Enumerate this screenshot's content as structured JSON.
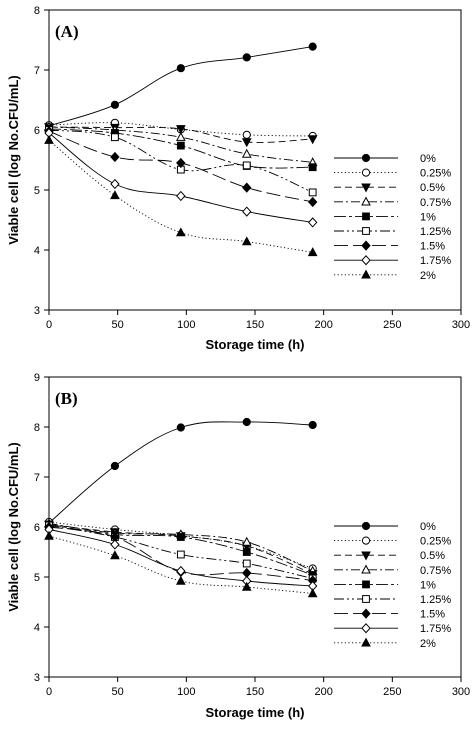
{
  "chart_data": [
    {
      "type": "line",
      "panel_label": "(A)",
      "xlabel": "Storage time (h)",
      "ylabel": "Viable cell (log No.CFU/mL)",
      "xlim": [
        0,
        300
      ],
      "ylim": [
        3,
        8
      ],
      "xticks": [
        0,
        50,
        100,
        150,
        200,
        250,
        300
      ],
      "yticks": [
        3,
        4,
        5,
        6,
        7,
        8
      ],
      "grid": false,
      "legend_position": "right",
      "x": [
        0,
        48,
        96,
        144,
        192
      ],
      "series": [
        {
          "name": "0%",
          "marker": "circle",
          "fill": "filled",
          "dash": "solid",
          "values": [
            6.07,
            6.42,
            7.03,
            7.21,
            7.39
          ]
        },
        {
          "name": "0.25%",
          "marker": "circle",
          "fill": "open",
          "dash": "dotted",
          "values": [
            6.08,
            6.12,
            6.01,
            5.92,
            5.9
          ]
        },
        {
          "name": "0.5%",
          "marker": "triangle-down",
          "fill": "filled",
          "dash": "short-dash",
          "values": [
            6.05,
            6.04,
            6.02,
            5.8,
            5.85
          ]
        },
        {
          "name": "0.75%",
          "marker": "triangle-up",
          "fill": "open",
          "dash": "dash-dot",
          "values": [
            6.05,
            6.0,
            5.88,
            5.6,
            5.46
          ]
        },
        {
          "name": "1%",
          "marker": "square",
          "fill": "filled",
          "dash": "long-dash-dot",
          "values": [
            6.02,
            5.95,
            5.74,
            5.4,
            5.38
          ]
        },
        {
          "name": "1.25%",
          "marker": "square",
          "fill": "open",
          "dash": "dash-dot-dot",
          "values": [
            6.0,
            5.88,
            5.34,
            5.41,
            4.96
          ]
        },
        {
          "name": "1.5%",
          "marker": "diamond",
          "fill": "filled",
          "dash": "long-dash",
          "values": [
            5.98,
            5.55,
            5.45,
            5.04,
            4.8
          ]
        },
        {
          "name": "1.75%",
          "marker": "diamond",
          "fill": "open",
          "dash": "solid",
          "values": [
            5.95,
            5.1,
            4.9,
            4.64,
            4.46
          ]
        },
        {
          "name": "2%",
          "marker": "triangle-up",
          "fill": "filled",
          "dash": "dotted",
          "values": [
            5.83,
            4.91,
            4.29,
            4.14,
            3.96
          ]
        }
      ]
    },
    {
      "type": "line",
      "panel_label": "(B)",
      "xlabel": "Storage time (h)",
      "ylabel": "Viable cell (log No.CFU/mL)",
      "xlim": [
        0,
        300
      ],
      "ylim": [
        3,
        9
      ],
      "xticks": [
        0,
        50,
        100,
        150,
        200,
        250,
        300
      ],
      "yticks": [
        3,
        4,
        5,
        6,
        7,
        8,
        9
      ],
      "grid": false,
      "legend_position": "right",
      "x": [
        0,
        48,
        96,
        144,
        192
      ],
      "series": [
        {
          "name": "0%",
          "marker": "circle",
          "fill": "filled",
          "dash": "solid",
          "values": [
            6.08,
            7.22,
            7.99,
            8.1,
            8.04
          ]
        },
        {
          "name": "0.25%",
          "marker": "circle",
          "fill": "open",
          "dash": "dotted",
          "values": [
            6.1,
            5.95,
            5.83,
            5.62,
            5.17
          ]
        },
        {
          "name": "0.5%",
          "marker": "triangle-down",
          "fill": "filled",
          "dash": "short-dash",
          "values": [
            6.05,
            5.9,
            5.82,
            5.62,
            5.06
          ]
        },
        {
          "name": "0.75%",
          "marker": "triangle-up",
          "fill": "open",
          "dash": "dash-dot",
          "values": [
            6.07,
            5.88,
            5.85,
            5.7,
            5.12
          ]
        },
        {
          "name": "1%",
          "marker": "square",
          "fill": "filled",
          "dash": "long-dash-dot",
          "values": [
            6.05,
            5.85,
            5.8,
            5.5,
            5.04
          ]
        },
        {
          "name": "1.25%",
          "marker": "square",
          "fill": "open",
          "dash": "dash-dot-dot",
          "values": [
            6.03,
            5.8,
            5.45,
            5.27,
            4.97
          ]
        },
        {
          "name": "1.5%",
          "marker": "diamond",
          "fill": "filled",
          "dash": "long-dash",
          "values": [
            6.0,
            5.8,
            5.1,
            5.08,
            4.93
          ]
        },
        {
          "name": "1.75%",
          "marker": "diamond",
          "fill": "open",
          "dash": "solid",
          "values": [
            5.95,
            5.65,
            5.12,
            4.92,
            4.82
          ]
        },
        {
          "name": "2%",
          "marker": "triangle-up",
          "fill": "filled",
          "dash": "dotted",
          "values": [
            5.82,
            5.43,
            4.92,
            4.8,
            4.67
          ]
        }
      ]
    }
  ]
}
